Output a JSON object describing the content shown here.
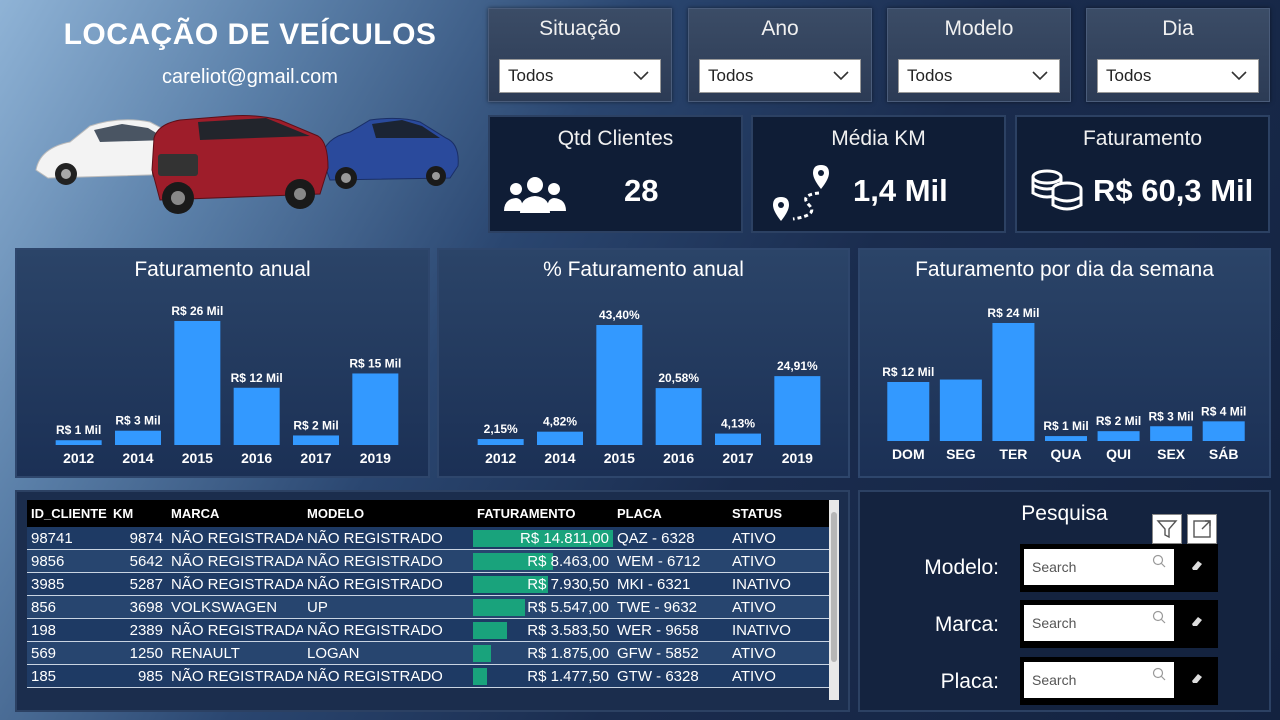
{
  "header": {
    "title": "LOCAÇÃO DE VEÍCULOS",
    "email": "careliot@gmail.com"
  },
  "filters": [
    {
      "label": "Situação",
      "value": "Todos"
    },
    {
      "label": "Ano",
      "value": "Todos"
    },
    {
      "label": "Modelo",
      "value": "Todos"
    },
    {
      "label": "Dia",
      "value": "Todos"
    }
  ],
  "kpis": {
    "clientes": {
      "label": "Qtd Clientes",
      "value": "28",
      "icon": "users-icon"
    },
    "km": {
      "label": "Média KM",
      "value": "1,4 Mil",
      "icon": "route-icon"
    },
    "faturamento": {
      "label": "Faturamento",
      "value": "R$ 60,3 Mil",
      "icon": "coins-icon"
    }
  },
  "colors": {
    "bar": "#3399ff",
    "fatbar": "#19a37c",
    "panel": "#1b3055"
  },
  "chart_data": [
    {
      "type": "bar",
      "title": "Faturamento anual",
      "categories": [
        "2012",
        "2014",
        "2015",
        "2016",
        "2017",
        "2019"
      ],
      "values": [
        1,
        3,
        26,
        12,
        2,
        15
      ],
      "labels": [
        "R$ 1 Mil",
        "R$ 3 Mil",
        "R$ 26 Mil",
        "R$ 12 Mil",
        "R$ 2 Mil",
        "R$ 15 Mil"
      ],
      "grid": false
    },
    {
      "type": "bar",
      "title": "% Faturamento anual",
      "categories": [
        "2012",
        "2014",
        "2015",
        "2016",
        "2017",
        "2019"
      ],
      "values": [
        2.15,
        4.82,
        43.4,
        20.58,
        4.13,
        24.91
      ],
      "labels": [
        "2,15%",
        "4,82%",
        "43,40%",
        "20,58%",
        "4,13%",
        "24,91%"
      ],
      "grid": false
    },
    {
      "type": "bar",
      "title": "Faturamento por dia da semana",
      "categories": [
        "DOM",
        "SEG",
        "TER",
        "QUA",
        "QUI",
        "SEX",
        "SÁB"
      ],
      "values": [
        12,
        12.5,
        24,
        1,
        2,
        3,
        4
      ],
      "labels": [
        "R$ 12 Mil",
        "",
        "R$ 24 Mil",
        "R$ 1 Mil",
        "R$ 2 Mil",
        "R$ 3 Mil",
        "R$ 4 Mil"
      ],
      "grid": false
    }
  ],
  "table": {
    "headers": {
      "id": "ID_CLIENTE",
      "km": "KM",
      "marca": "MARCA",
      "modelo": "MODELO",
      "fat": "FATURAMENTO",
      "placa": "PLACA",
      "status": "STATUS"
    },
    "rows": [
      {
        "id": "98741",
        "km": "9874",
        "marca": "NÃO REGISTRADA",
        "modelo": "NÃO REGISTRADO",
        "fat": "R$ 14.811,00",
        "fat_value": 14811,
        "placa": "QAZ - 6328",
        "status": "ATIVO"
      },
      {
        "id": "9856",
        "km": "5642",
        "marca": "NÃO REGISTRADA",
        "modelo": "NÃO REGISTRADO",
        "fat": "R$ 8.463,00",
        "fat_value": 8463,
        "placa": "WEM - 6712",
        "status": "ATIVO"
      },
      {
        "id": "3985",
        "km": "5287",
        "marca": "NÃO REGISTRADA",
        "modelo": "NÃO REGISTRADO",
        "fat": "R$ 7.930,50",
        "fat_value": 7930.5,
        "placa": "MKI - 6321",
        "status": "INATIVO"
      },
      {
        "id": "856",
        "km": "3698",
        "marca": "VOLKSWAGEN",
        "modelo": "UP",
        "fat": "R$ 5.547,00",
        "fat_value": 5547,
        "placa": "TWE - 9632",
        "status": "ATIVO"
      },
      {
        "id": "198",
        "km": "2389",
        "marca": "NÃO REGISTRADA",
        "modelo": "NÃO REGISTRADO",
        "fat": "R$ 3.583,50",
        "fat_value": 3583.5,
        "placa": "WER - 9658",
        "status": "INATIVO"
      },
      {
        "id": "569",
        "km": "1250",
        "marca": "RENAULT",
        "modelo": "LOGAN",
        "fat": "R$ 1.875,00",
        "fat_value": 1875,
        "placa": "GFW - 5852",
        "status": "ATIVO"
      },
      {
        "id": "185",
        "km": "985",
        "marca": "NÃO REGISTRADA",
        "modelo": "NÃO REGISTRADO",
        "fat": "R$ 1.477,50",
        "fat_value": 1477.5,
        "placa": "GTW - 6328",
        "status": "ATIVO"
      }
    ]
  },
  "search": {
    "title": "Pesquisa",
    "fields": [
      {
        "label": "Modelo:",
        "placeholder": "Search"
      },
      {
        "label": "Marca:",
        "placeholder": "Search"
      },
      {
        "label": "Placa:",
        "placeholder": "Search"
      }
    ]
  }
}
